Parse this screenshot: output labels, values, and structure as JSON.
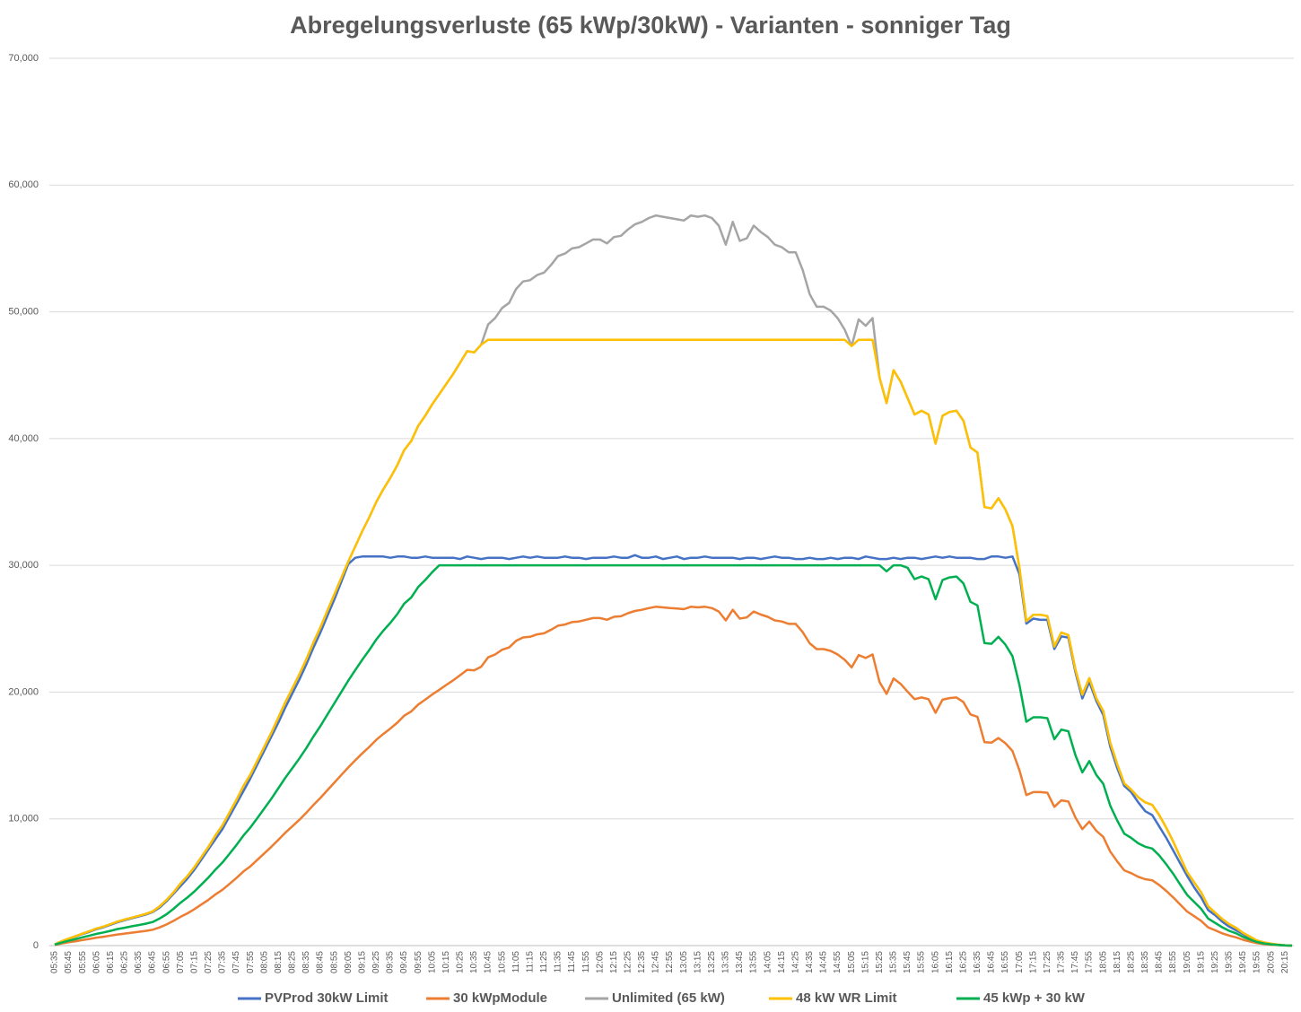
{
  "chart_data": {
    "type": "line",
    "title": "Abregelungsverluste (65 kWp/30kW) - Varianten - sonniger Tag",
    "categories": [
      "05:35",
      null,
      "05:45",
      null,
      "05:55",
      null,
      "06:05",
      null,
      "06:15",
      null,
      "06:25",
      null,
      "06:35",
      null,
      "06:45",
      null,
      "06:55",
      null,
      "07:05",
      null,
      "07:15",
      null,
      "07:25",
      null,
      "07:35",
      null,
      "07:45",
      null,
      "07:55",
      null,
      "08:05",
      null,
      "08:15",
      null,
      "08:25",
      null,
      "08:35",
      null,
      "08:45",
      null,
      "08:55",
      null,
      "09:05",
      null,
      "09:15",
      null,
      "09:25",
      null,
      "09:35",
      null,
      "09:45",
      null,
      "09:55",
      null,
      "10:05",
      null,
      "10:15",
      null,
      "10:25",
      null,
      "10:35",
      null,
      "10:45",
      null,
      "10:55",
      null,
      "11:05",
      null,
      "11:15",
      null,
      "11:25",
      null,
      "11:35",
      null,
      "11:45",
      null,
      "11:55",
      null,
      "12:05",
      null,
      "12:15",
      null,
      "12:25",
      null,
      "12:35",
      null,
      "12:45",
      null,
      "12:55",
      null,
      "13:05",
      null,
      "13:15",
      null,
      "13:25",
      null,
      "13:35",
      null,
      "13:45",
      null,
      "13:55",
      null,
      "14:05",
      null,
      "14:15",
      null,
      "14:25",
      null,
      "14:35",
      null,
      "14:45",
      null,
      "14:55",
      null,
      "15:05",
      null,
      "15:15",
      null,
      "15:25",
      null,
      "15:35",
      null,
      "15:45",
      null,
      "15:55",
      null,
      "16:05",
      null,
      "16:15",
      null,
      "16:25",
      null,
      "16:35",
      null,
      "16:45",
      null,
      "16:55",
      null,
      "17:05",
      null,
      "17:15",
      null,
      "17:25",
      null,
      "17:35",
      null,
      "17:45",
      null,
      "17:55",
      null,
      "18:05",
      null,
      "18:15",
      null,
      "18:25",
      null,
      "18:35",
      null,
      "18:45",
      null,
      "18:55",
      null,
      "19:05",
      null,
      "19:15",
      null,
      "19:25",
      null,
      "19:35",
      null,
      "19:45",
      null,
      "19:55",
      null,
      "20:05",
      null,
      "20:15",
      null
    ],
    "ylim": [
      0,
      70000
    ],
    "yticks": [
      0,
      {
        "value": 10000,
        "label": "10,000"
      },
      {
        "value": 20000,
        "label": "20,000"
      },
      {
        "value": 30000,
        "label": "30,000"
      },
      {
        "value": 40000,
        "label": "40,000"
      },
      {
        "value": 50000,
        "label": "50,000"
      },
      {
        "value": 60000,
        "label": "60,000"
      },
      {
        "value": 70000,
        "label": "70,000"
      }
    ],
    "grid": true,
    "legend": "bottom",
    "series": [
      {
        "name": "PVProd 30kW Limit",
        "color": "#4472c4",
        "values": [
          100,
          330,
          530,
          720,
          920,
          1100,
          1300,
          1450,
          1650,
          1850,
          2000,
          2150,
          2300,
          2450,
          2650,
          3000,
          3500,
          4100,
          4700,
          5300,
          6000,
          6800,
          7600,
          8400,
          9200,
          10200,
          11200,
          12200,
          13200,
          14300,
          15400,
          16500,
          17600,
          18800,
          19900,
          21000,
          22200,
          23500,
          24700,
          26000,
          27300,
          28700,
          30100,
          30600,
          30700,
          30700,
          30700,
          30700,
          30600,
          30700,
          30700,
          30600,
          30600,
          30700,
          30600,
          30600,
          30600,
          30600,
          30500,
          30700,
          30600,
          30500,
          30600,
          30600,
          30600,
          30500,
          30600,
          30700,
          30600,
          30700,
          30600,
          30600,
          30600,
          30700,
          30600,
          30600,
          30500,
          30600,
          30600,
          30600,
          30700,
          30600,
          30600,
          30800,
          30600,
          30600,
          30700,
          30500,
          30600,
          30700,
          30500,
          30600,
          30600,
          30700,
          30600,
          30600,
          30600,
          30600,
          30500,
          30600,
          30600,
          30500,
          30600,
          30700,
          30600,
          30600,
          30500,
          30500,
          30600,
          30500,
          30500,
          30600,
          30500,
          30600,
          30600,
          30500,
          30700,
          30600,
          30500,
          30500,
          30600,
          30500,
          30600,
          30600,
          30500,
          30600,
          30700,
          30600,
          30700,
          30600,
          30600,
          30600,
          30500,
          30500,
          30700,
          30700,
          30600,
          30700,
          29300,
          25400,
          25800,
          25700,
          25700,
          23400,
          24400,
          24300,
          21600,
          19500,
          20800,
          19300,
          18200,
          15700,
          14000,
          12600,
          12100,
          11300,
          10600,
          10300,
          9400,
          8500,
          7500,
          6500,
          5500,
          4600,
          3800,
          2800,
          2400,
          1900,
          1500,
          1200,
          900,
          600,
          350,
          200,
          120,
          60,
          20,
          0
        ]
      },
      {
        "name": "30 kWpModule",
        "color": "#ed7d31",
        "values": [
          50,
          160,
          260,
          350,
          440,
          530,
          630,
          700,
          790,
          880,
          950,
          1020,
          1090,
          1160,
          1250,
          1440,
          1670,
          1950,
          2270,
          2550,
          2880,
          3250,
          3620,
          4040,
          4410,
          4870,
          5340,
          5850,
          6260,
          6770,
          7280,
          7800,
          8350,
          8910,
          9420,
          9930,
          10490,
          11090,
          11650,
          12250,
          12850,
          13460,
          14060,
          14620,
          15170,
          15680,
          16240,
          16700,
          17120,
          17590,
          18140,
          18470,
          19020,
          19400,
          19810,
          20180,
          20560,
          20930,
          21340,
          21760,
          21720,
          21990,
          22740,
          22970,
          23340,
          23520,
          24040,
          24310,
          24360,
          24550,
          24640,
          24920,
          25240,
          25330,
          25520,
          25570,
          25710,
          25840,
          25840,
          25710,
          25940,
          25980,
          26220,
          26400,
          26490,
          26630,
          26730,
          26680,
          26630,
          26590,
          26540,
          26730,
          26680,
          26730,
          26630,
          26360,
          25660,
          26490,
          25800,
          25890,
          26360,
          26120,
          25940,
          25660,
          25570,
          25380,
          25380,
          24730,
          23850,
          23390,
          23390,
          23250,
          22970,
          22550,
          21950,
          22920,
          22690,
          22970,
          20790,
          19860,
          21070,
          20650,
          20040,
          19440,
          19580,
          19440,
          18370,
          19400,
          19530,
          19580,
          19210,
          18240,
          18050,
          16050,
          16010,
          16380,
          15960,
          15360,
          13830,
          11880,
          12110,
          12110,
          12060,
          10950,
          11460,
          11370,
          10120,
          9190,
          9790,
          9050,
          8580,
          7420,
          6640,
          5940,
          5710,
          5430,
          5240,
          5150,
          4780,
          4320,
          3800,
          3250,
          2690,
          2320,
          1950,
          1440,
          1210,
          970,
          790,
          650,
          460,
          320,
          190,
          120,
          70,
          40,
          10,
          0
        ]
      },
      {
        "name": "Unlimited (65 kW)",
        "color": "#a5a5a5",
        "values": [
          100,
          350,
          550,
          750,
          950,
          1150,
          1350,
          1500,
          1700,
          1900,
          2050,
          2200,
          2350,
          2500,
          2700,
          3100,
          3600,
          4200,
          4900,
          5500,
          6200,
          7000,
          7800,
          8700,
          9500,
          10500,
          11500,
          12600,
          13500,
          14600,
          15700,
          16800,
          18000,
          19200,
          20300,
          21400,
          22600,
          23900,
          25100,
          26400,
          27700,
          29000,
          30300,
          31500,
          32700,
          33800,
          35000,
          36000,
          36900,
          37900,
          39100,
          39800,
          41000,
          41800,
          42700,
          43500,
          44300,
          45100,
          46000,
          46900,
          46800,
          47400,
          49000,
          49500,
          50300,
          50700,
          51800,
          52400,
          52500,
          52900,
          53100,
          53700,
          54400,
          54600,
          55000,
          55100,
          55400,
          55700,
          55700,
          55400,
          55900,
          56000,
          56500,
          56900,
          57100,
          57400,
          57600,
          57500,
          57400,
          57300,
          57200,
          57600,
          57500,
          57600,
          57400,
          56800,
          55300,
          57100,
          55600,
          55800,
          56800,
          56300,
          55900,
          55300,
          55100,
          54700,
          54700,
          53300,
          51400,
          50400,
          50400,
          50100,
          49500,
          48600,
          47300,
          49400,
          48900,
          49500,
          44800,
          42800,
          45400,
          44500,
          43200,
          41900,
          42200,
          41900,
          39600,
          41800,
          42100,
          42200,
          41400,
          39300,
          38900,
          34600,
          34500,
          35300,
          34400,
          33100,
          29800,
          25600,
          26100,
          26100,
          26000,
          23600,
          24700,
          24500,
          21800,
          19800,
          21100,
          19500,
          18500,
          16000,
          14300,
          12800,
          12300,
          11700,
          11300,
          11100,
          10300,
          9300,
          8200,
          7000,
          5800,
          5000,
          4200,
          3100,
          2600,
          2100,
          1700,
          1400,
          1000,
          700,
          400,
          250,
          150,
          80,
          30,
          0
        ]
      },
      {
        "name": "48 kW WR Limit",
        "color": "#ffc000",
        "values": [
          100,
          350,
          550,
          750,
          950,
          1150,
          1350,
          1500,
          1700,
          1900,
          2050,
          2200,
          2350,
          2500,
          2700,
          3100,
          3600,
          4200,
          4900,
          5500,
          6200,
          7000,
          7800,
          8700,
          9500,
          10500,
          11500,
          12600,
          13500,
          14600,
          15700,
          16800,
          18000,
          19200,
          20300,
          21400,
          22600,
          23900,
          25100,
          26400,
          27700,
          29000,
          30300,
          31500,
          32700,
          33800,
          35000,
          36000,
          36900,
          37900,
          39100,
          39800,
          41000,
          41800,
          42700,
          43500,
          44300,
          45100,
          46000,
          46900,
          46800,
          47400,
          47800,
          47800,
          47800,
          47800,
          47800,
          47800,
          47800,
          47800,
          47800,
          47800,
          47800,
          47800,
          47800,
          47800,
          47800,
          47800,
          47800,
          47800,
          47800,
          47800,
          47800,
          47800,
          47800,
          47800,
          47800,
          47800,
          47800,
          47800,
          47800,
          47800,
          47800,
          47800,
          47800,
          47800,
          47800,
          47800,
          47800,
          47800,
          47800,
          47800,
          47800,
          47800,
          47800,
          47800,
          47800,
          47800,
          47800,
          47800,
          47800,
          47800,
          47800,
          47800,
          47300,
          47800,
          47800,
          47800,
          44800,
          42800,
          45400,
          44500,
          43200,
          41900,
          42200,
          41900,
          39600,
          41800,
          42100,
          42200,
          41400,
          39300,
          38900,
          34600,
          34500,
          35300,
          34400,
          33100,
          29800,
          25600,
          26100,
          26100,
          26000,
          23600,
          24700,
          24500,
          21800,
          19800,
          21100,
          19500,
          18500,
          16000,
          14300,
          12800,
          12300,
          11700,
          11300,
          11100,
          10300,
          9300,
          8200,
          7000,
          5800,
          5000,
          4200,
          3100,
          2600,
          2100,
          1700,
          1400,
          1000,
          700,
          400,
          250,
          150,
          80,
          30,
          0
        ]
      },
      {
        "name": "45 kWp + 30 kW",
        "color": "#00b050",
        "values": [
          70,
          240,
          380,
          520,
          660,
          790,
          930,
          1040,
          1170,
          1310,
          1410,
          1520,
          1620,
          1730,
          1860,
          2140,
          2480,
          2900,
          3380,
          3800,
          4280,
          4830,
          5380,
          6000,
          6560,
          7250,
          7940,
          8690,
          9320,
          10070,
          10830,
          11590,
          12420,
          13250,
          14010,
          14770,
          15590,
          16490,
          17320,
          18220,
          19110,
          20010,
          20910,
          21740,
          22560,
          23320,
          24150,
          24840,
          25460,
          26150,
          26980,
          27460,
          28290,
          28840,
          29460,
          30000,
          30000,
          30000,
          30000,
          30000,
          30000,
          30000,
          30000,
          30000,
          30000,
          30000,
          30000,
          30000,
          30000,
          30000,
          30000,
          30000,
          30000,
          30000,
          30000,
          30000,
          30000,
          30000,
          30000,
          30000,
          30000,
          30000,
          30000,
          30000,
          30000,
          30000,
          30000,
          30000,
          30000,
          30000,
          30000,
          30000,
          30000,
          30000,
          30000,
          30000,
          30000,
          30000,
          30000,
          30000,
          30000,
          30000,
          30000,
          30000,
          30000,
          30000,
          30000,
          30000,
          30000,
          30000,
          30000,
          30000,
          30000,
          30000,
          30000,
          30000,
          30000,
          30000,
          30000,
          29530,
          30000,
          30000,
          29810,
          28910,
          29120,
          28910,
          27320,
          28840,
          29050,
          29120,
          28570,
          27120,
          26840,
          23870,
          23810,
          24360,
          23740,
          22840,
          20560,
          17660,
          18010,
          18010,
          17940,
          16280,
          17040,
          16910,
          15040,
          13660,
          14560,
          13460,
          12770,
          11040,
          9870,
          8830,
          8490,
          8070,
          7800,
          7660,
          7110,
          6420,
          5660,
          4830,
          4000,
          3450,
          2900,
          2140,
          1790,
          1450,
          1170,
          970,
          690,
          480,
          280,
          170,
          100,
          60,
          20,
          0
        ]
      }
    ]
  }
}
